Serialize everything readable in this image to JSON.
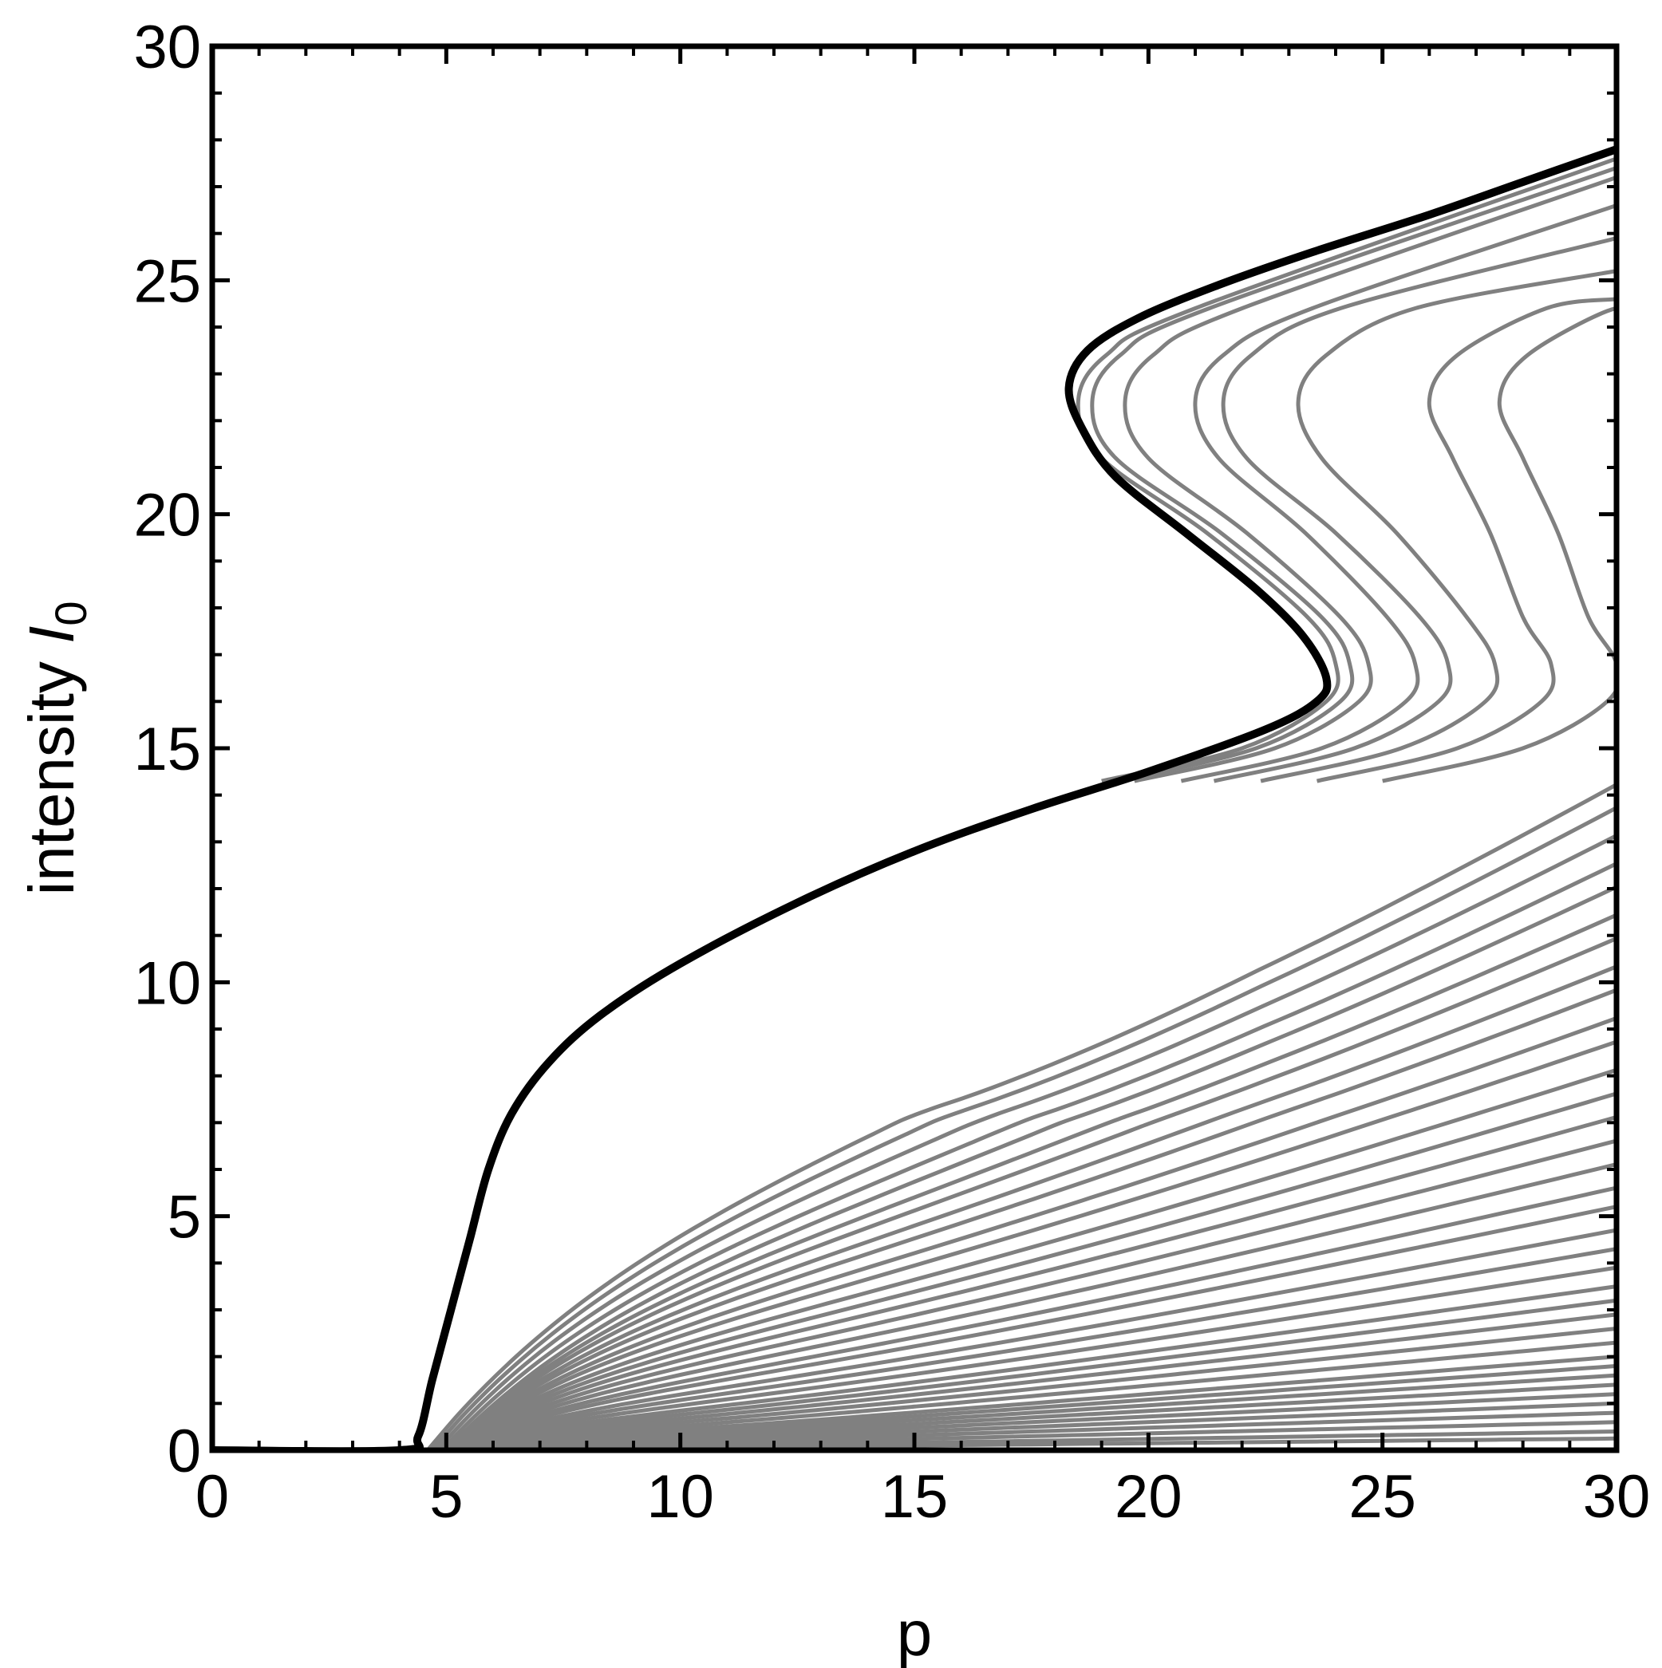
{
  "chart_data": {
    "type": "line",
    "xlabel": "p",
    "ylabel": "intensity ",
    "ylabel_symbol": "I",
    "ylabel_subscript": "0",
    "xlim": [
      0,
      30
    ],
    "ylim": [
      0,
      30
    ],
    "x_ticks": [
      "0",
      "5",
      "10",
      "15",
      "20",
      "25",
      "30"
    ],
    "y_ticks": [
      "0",
      "5",
      "10",
      "15",
      "20",
      "25",
      "30"
    ],
    "grid": false,
    "legend": "none",
    "colors": {
      "envelope": "#000000",
      "family": "#808080"
    },
    "envelope": {
      "points": [
        [
          0,
          0
        ],
        [
          4.0,
          0
        ],
        [
          4.4,
          0.3
        ],
        [
          4.7,
          1.5
        ],
        [
          5.1,
          3.0
        ],
        [
          5.5,
          4.5
        ],
        [
          5.9,
          6.0
        ],
        [
          6.4,
          7.2
        ],
        [
          7.2,
          8.3
        ],
        [
          8.3,
          9.3
        ],
        [
          10,
          10.4
        ],
        [
          12.5,
          11.7
        ],
        [
          15,
          12.8
        ],
        [
          17.5,
          13.7
        ],
        [
          20,
          14.5
        ],
        [
          22.5,
          15.4
        ],
        [
          23.6,
          16.0
        ],
        [
          23.8,
          16.5
        ],
        [
          23.3,
          17.4
        ],
        [
          22.3,
          18.4
        ],
        [
          20.8,
          19.6
        ],
        [
          19.3,
          20.8
        ],
        [
          18.6,
          21.8
        ],
        [
          18.3,
          22.7
        ],
        [
          18.7,
          23.5
        ],
        [
          19.8,
          24.2
        ],
        [
          21.5,
          24.9
        ],
        [
          23.5,
          25.6
        ],
        [
          26,
          26.4
        ],
        [
          28,
          27.1
        ],
        [
          30,
          27.8
        ]
      ]
    },
    "hysteresis_curves": [
      {
        "xmin": 18.5,
        "xmax": 24.0,
        "top": 27.6
      },
      {
        "xmin": 18.8,
        "xmax": 24.3,
        "top": 27.4
      },
      {
        "xmin": 19.5,
        "xmax": 24.7,
        "top": 27.2
      },
      {
        "xmin": 21.0,
        "xmax": 25.7,
        "top": 26.6
      },
      {
        "xmin": 21.6,
        "xmax": 26.4,
        "top": 25.9
      },
      {
        "xmin": 23.2,
        "xmax": 27.4,
        "top": 25.2
      },
      {
        "xmin": 26.0,
        "xmax": 28.6,
        "top": 24.6
      },
      {
        "xmin": 27.5,
        "xmax": 30.0,
        "top": 23.7
      }
    ],
    "fan_curves": [
      {
        "x0": 4.6,
        "end": 14.2
      },
      {
        "x0": 4.7,
        "end": 13.7
      },
      {
        "x0": 4.8,
        "end": 13.1
      },
      {
        "x0": 4.9,
        "end": 12.5
      },
      {
        "x0": 5.0,
        "end": 12.0
      },
      {
        "x0": 5.0,
        "end": 11.4
      },
      {
        "x0": 5.0,
        "end": 10.9
      },
      {
        "x0": 5.0,
        "end": 10.3
      },
      {
        "x0": 5.0,
        "end": 9.8
      },
      {
        "x0": 5.0,
        "end": 9.2
      },
      {
        "x0": 5.0,
        "end": 8.7
      },
      {
        "x0": 5.0,
        "end": 8.1
      },
      {
        "x0": 5.0,
        "end": 7.6
      },
      {
        "x0": 5.0,
        "end": 7.1
      },
      {
        "x0": 5.0,
        "end": 6.6
      },
      {
        "x0": 5.0,
        "end": 6.1
      },
      {
        "x0": 5.0,
        "end": 5.6
      },
      {
        "x0": 5.0,
        "end": 5.2
      },
      {
        "x0": 5.0,
        "end": 4.7
      },
      {
        "x0": 5.0,
        "end": 4.3
      },
      {
        "x0": 5.0,
        "end": 3.9
      },
      {
        "x0": 5.0,
        "end": 3.5
      },
      {
        "x0": 5.0,
        "end": 3.2
      },
      {
        "x0": 5.0,
        "end": 2.9
      },
      {
        "x0": 5.0,
        "end": 2.6
      },
      {
        "x0": 5.0,
        "end": 2.3
      },
      {
        "x0": 5.0,
        "end": 2.0
      },
      {
        "x0": 5.0,
        "end": 1.8
      },
      {
        "x0": 5.0,
        "end": 1.6
      },
      {
        "x0": 5.0,
        "end": 1.4
      },
      {
        "x0": 5.0,
        "end": 1.2
      },
      {
        "x0": 5.0,
        "end": 1.0
      },
      {
        "x0": 5.0,
        "end": 0.8
      },
      {
        "x0": 5.0,
        "end": 0.6
      },
      {
        "x0": 5.0,
        "end": 0.4
      },
      {
        "x0": 5.0,
        "end": 0.25
      }
    ]
  }
}
